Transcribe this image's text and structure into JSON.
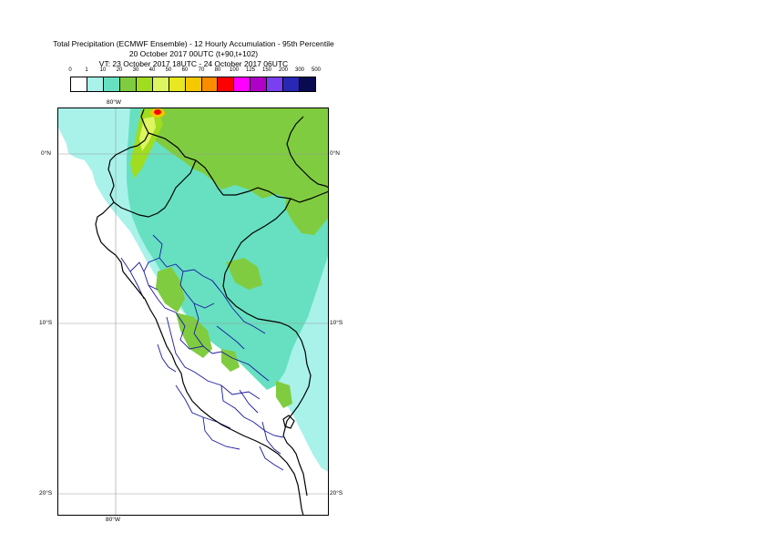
{
  "header": {
    "title_line1": "Total Precipitation (ECMWF Ensemble) - 12 Hourly Accumulation - 95th Percentile",
    "title_line2": "20 October 2017 00UTC (t+90,t+102)",
    "title_line3": "VT: 23 October 2017 18UTC - 24 October 2017 06UTC"
  },
  "legend": {
    "ticks": [
      "0",
      "1",
      "10",
      "20",
      "30",
      "40",
      "50",
      "60",
      "70",
      "80",
      "100",
      "125",
      "150",
      "200",
      "300",
      "500"
    ],
    "colors": [
      "#ffffff",
      "#a8f2ea",
      "#66e0c0",
      "#80cc40",
      "#a0dc20",
      "#ddf560",
      "#e8e820",
      "#f5c800",
      "#fb8c00",
      "#ff0000",
      "#ff00ff",
      "#b000c8",
      "#7840f0",
      "#2828b4",
      "#0a0a50"
    ]
  },
  "map": {
    "lon_label_top": "80°W",
    "lon_label_bottom": "80°W",
    "lat_labels_left": [
      "0°N",
      "10°S",
      "20°S"
    ],
    "lat_labels_right": [
      "0°N",
      "10°S",
      "20°S"
    ],
    "colors": {
      "ocean": "#ffffff",
      "light_precip": "#a8f2ea",
      "mid_precip": "#66e0c0",
      "green_precip": "#80cc40",
      "yellowgreen_precip": "#a0dc20",
      "coast": "#000000",
      "admin_borders": "#1a1aa0",
      "grid": "#999999",
      "peak_red": "#ff0000"
    }
  }
}
